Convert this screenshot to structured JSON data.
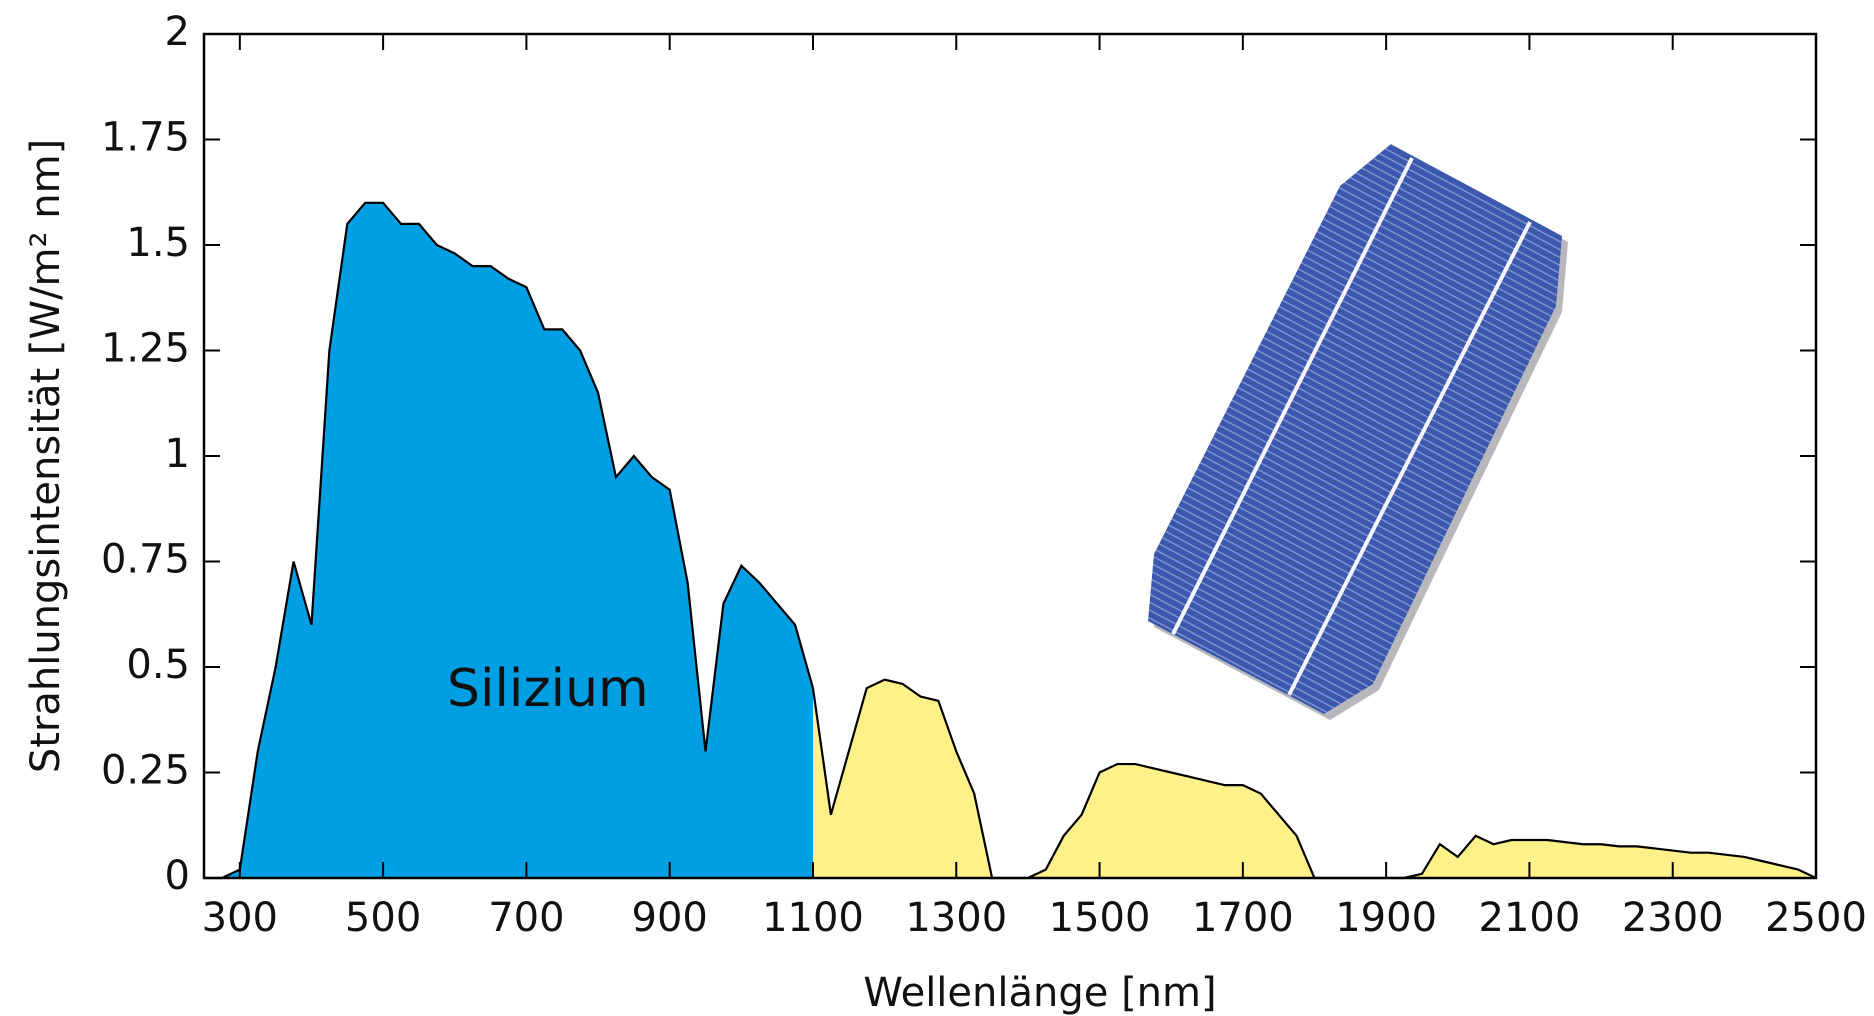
{
  "chart_data": {
    "type": "area",
    "xlabel": "Wellenlänge [nm]",
    "ylabel": "Strahlungsintensität [W/m² nm]",
    "annotation": "Silizium",
    "x": [
      250,
      275,
      300,
      325,
      350,
      375,
      400,
      425,
      450,
      475,
      500,
      525,
      550,
      575,
      600,
      625,
      650,
      675,
      700,
      725,
      750,
      775,
      800,
      825,
      850,
      875,
      900,
      925,
      950,
      975,
      1000,
      1025,
      1050,
      1075,
      1100,
      1125,
      1150,
      1175,
      1200,
      1225,
      1250,
      1275,
      1300,
      1325,
      1350,
      1375,
      1400,
      1425,
      1450,
      1475,
      1500,
      1525,
      1550,
      1575,
      1600,
      1625,
      1650,
      1675,
      1700,
      1725,
      1750,
      1775,
      1800,
      1825,
      1850,
      1875,
      1900,
      1925,
      1950,
      1975,
      2000,
      2025,
      2050,
      2075,
      2100,
      2125,
      2150,
      2175,
      2200,
      2225,
      2250,
      2275,
      2300,
      2325,
      2350,
      2375,
      2400,
      2425,
      2450,
      2475,
      2500
    ],
    "series": [
      {
        "color": "#009fe3",
        "values": [
          0,
          0,
          0.02,
          0.3,
          0.5,
          0.75,
          0.6,
          1.25,
          1.55,
          1.6,
          1.6,
          1.55,
          1.55,
          1.5,
          1.48,
          1.45,
          1.45,
          1.42,
          1.4,
          1.3,
          1.3,
          1.25,
          1.15,
          0.95,
          1.0,
          0.95,
          0.92,
          0.7,
          0.3,
          0.65,
          0.74,
          0.7,
          0.65,
          0.6,
          0.45,
          null,
          null,
          null,
          null,
          null,
          null,
          null,
          null,
          null,
          null,
          null,
          null,
          null,
          null,
          null,
          null,
          null,
          null,
          null,
          null,
          null,
          null,
          null,
          null,
          null,
          null,
          null,
          null,
          null,
          null,
          null,
          null,
          null,
          null,
          null,
          null,
          null,
          null,
          null,
          null,
          null,
          null,
          null,
          null,
          null,
          null,
          null,
          null,
          null,
          null,
          null,
          null,
          null,
          null,
          null,
          null
        ]
      },
      {
        "color": "#fff18a",
        "values": [
          null,
          null,
          null,
          null,
          null,
          null,
          null,
          null,
          null,
          null,
          null,
          null,
          null,
          null,
          null,
          null,
          null,
          null,
          null,
          null,
          null,
          null,
          null,
          null,
          null,
          null,
          null,
          null,
          null,
          null,
          null,
          null,
          null,
          null,
          0.45,
          0.15,
          0.3,
          0.45,
          0.47,
          0.46,
          0.43,
          0.42,
          0.3,
          0.2,
          0,
          0,
          0,
          0.02,
          0.1,
          0.15,
          0.25,
          0.27,
          0.27,
          0.26,
          0.25,
          0.24,
          0.23,
          0.22,
          0.22,
          0.2,
          0.15,
          0.1,
          0,
          0,
          0,
          0,
          0,
          0,
          0.01,
          0.08,
          0.05,
          0.1,
          0.08,
          0.09,
          0.09,
          0.09,
          0.085,
          0.08,
          0.08,
          0.075,
          0.075,
          0.07,
          0.065,
          0.06,
          0.06,
          0.055,
          0.05,
          0.04,
          0.03,
          0.02,
          0
        ]
      }
    ],
    "xlim": [
      250,
      2500
    ],
    "ylim": [
      0,
      2
    ],
    "xticks": [
      300,
      500,
      700,
      900,
      1100,
      1300,
      1500,
      1700,
      1900,
      2100,
      2300,
      2500
    ],
    "yticks": [
      0,
      0.25,
      0.5,
      0.75,
      1,
      1.25,
      1.5,
      1.75,
      2
    ],
    "grid": false
  }
}
